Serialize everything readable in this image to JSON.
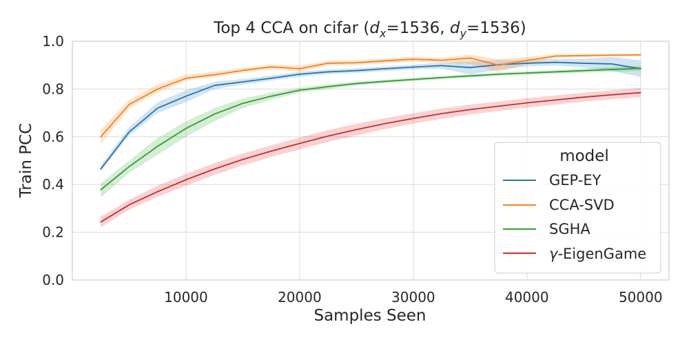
{
  "chart_data": {
    "type": "line",
    "title": "Top 4 CCA on cifar (",
    "title_math": {
      "x_var": "d",
      "x_sub": "x",
      "x_val": "=1536",
      "separator": ", ",
      "y_var": "d",
      "y_sub": "y",
      "y_val": "=1536",
      "close": ")"
    },
    "xlabel": "Samples Seen",
    "ylabel": "Train PCC",
    "xlim": [
      0,
      52500
    ],
    "ylim": [
      0.0,
      1.0
    ],
    "xticks": [
      10000,
      20000,
      30000,
      40000,
      50000
    ],
    "xtick_labels": [
      "10000",
      "20000",
      "30000",
      "40000",
      "50000"
    ],
    "yticks": [
      0.0,
      0.2,
      0.4,
      0.6,
      0.8,
      1.0
    ],
    "ytick_labels": [
      "0.0",
      "0.2",
      "0.4",
      "0.6",
      "0.8",
      "1.0"
    ],
    "grid": true,
    "legend": {
      "title": "model",
      "placement": "lower-right"
    },
    "series": [
      {
        "name": "GEP-EY",
        "color": "#1f77b4",
        "x": [
          2500,
          5000,
          7500,
          10000,
          12500,
          15000,
          17500,
          20000,
          22500,
          25000,
          27500,
          30000,
          32500,
          35000,
          37500,
          40000,
          42500,
          45000,
          47500,
          50000
        ],
        "y": [
          0.465,
          0.62,
          0.72,
          0.77,
          0.815,
          0.83,
          0.845,
          0.862,
          0.872,
          0.877,
          0.885,
          0.892,
          0.898,
          0.89,
          0.902,
          0.908,
          0.912,
          0.908,
          0.905,
          0.885
        ],
        "lower": [
          0.455,
          0.605,
          0.7,
          0.745,
          0.8,
          0.818,
          0.835,
          0.852,
          0.862,
          0.867,
          0.875,
          0.882,
          0.885,
          0.862,
          0.88,
          0.895,
          0.898,
          0.89,
          0.875,
          0.85
        ],
        "upper": [
          0.48,
          0.64,
          0.745,
          0.795,
          0.83,
          0.842,
          0.857,
          0.872,
          0.882,
          0.887,
          0.895,
          0.902,
          0.911,
          0.915,
          0.922,
          0.921,
          0.926,
          0.926,
          0.935,
          0.92
        ]
      },
      {
        "name": "CCA-SVD",
        "color": "#ff7f0e",
        "x": [
          2500,
          5000,
          7500,
          10000,
          12500,
          15000,
          17500,
          20000,
          22500,
          25000,
          27500,
          30000,
          32500,
          35000,
          37500,
          40000,
          42500,
          45000,
          47500,
          50000
        ],
        "y": [
          0.6,
          0.735,
          0.8,
          0.845,
          0.86,
          0.878,
          0.893,
          0.885,
          0.908,
          0.91,
          0.918,
          0.925,
          0.92,
          0.93,
          0.9,
          0.92,
          0.938,
          0.94,
          0.942,
          0.943
        ],
        "lower": [
          0.57,
          0.72,
          0.785,
          0.835,
          0.85,
          0.868,
          0.883,
          0.872,
          0.898,
          0.9,
          0.908,
          0.915,
          0.91,
          0.905,
          0.87,
          0.905,
          0.93,
          0.934,
          0.937,
          0.938
        ],
        "upper": [
          0.63,
          0.755,
          0.82,
          0.86,
          0.872,
          0.888,
          0.903,
          0.898,
          0.918,
          0.92,
          0.928,
          0.935,
          0.93,
          0.945,
          0.925,
          0.935,
          0.946,
          0.946,
          0.947,
          0.948
        ]
      },
      {
        "name": "SGHA",
        "color": "#2ca02c",
        "x": [
          2500,
          5000,
          7500,
          10000,
          12500,
          15000,
          17500,
          20000,
          22500,
          25000,
          27500,
          30000,
          32500,
          35000,
          37500,
          40000,
          42500,
          45000,
          47500,
          50000
        ],
        "y": [
          0.378,
          0.475,
          0.56,
          0.635,
          0.695,
          0.74,
          0.77,
          0.795,
          0.81,
          0.823,
          0.832,
          0.84,
          0.848,
          0.855,
          0.862,
          0.867,
          0.872,
          0.877,
          0.882,
          0.887
        ],
        "lower": [
          0.345,
          0.45,
          0.525,
          0.6,
          0.665,
          0.72,
          0.755,
          0.785,
          0.8,
          0.815,
          0.825,
          0.833,
          0.841,
          0.848,
          0.855,
          0.86,
          0.864,
          0.868,
          0.872,
          0.875
        ],
        "upper": [
          0.405,
          0.5,
          0.595,
          0.665,
          0.72,
          0.76,
          0.785,
          0.805,
          0.82,
          0.831,
          0.839,
          0.847,
          0.855,
          0.862,
          0.869,
          0.874,
          0.88,
          0.886,
          0.892,
          0.898
        ]
      },
      {
        "name": "γ-EigenGame",
        "name_parts": {
          "greek": "γ",
          "rest": "-EigenGame"
        },
        "color": "#d62728",
        "x": [
          2500,
          5000,
          7500,
          10000,
          12500,
          15000,
          17500,
          20000,
          22500,
          25000,
          27500,
          30000,
          32500,
          35000,
          37500,
          40000,
          42500,
          45000,
          47500,
          50000
        ],
        "y": [
          0.243,
          0.315,
          0.37,
          0.42,
          0.465,
          0.505,
          0.54,
          0.572,
          0.603,
          0.63,
          0.655,
          0.677,
          0.697,
          0.714,
          0.728,
          0.742,
          0.754,
          0.766,
          0.776,
          0.785
        ],
        "lower": [
          0.22,
          0.295,
          0.348,
          0.395,
          0.44,
          0.48,
          0.515,
          0.547,
          0.578,
          0.605,
          0.632,
          0.655,
          0.675,
          0.693,
          0.708,
          0.722,
          0.735,
          0.747,
          0.757,
          0.765
        ],
        "upper": [
          0.265,
          0.337,
          0.395,
          0.445,
          0.49,
          0.53,
          0.565,
          0.597,
          0.628,
          0.655,
          0.678,
          0.699,
          0.719,
          0.735,
          0.748,
          0.762,
          0.773,
          0.785,
          0.795,
          0.805
        ]
      }
    ]
  }
}
